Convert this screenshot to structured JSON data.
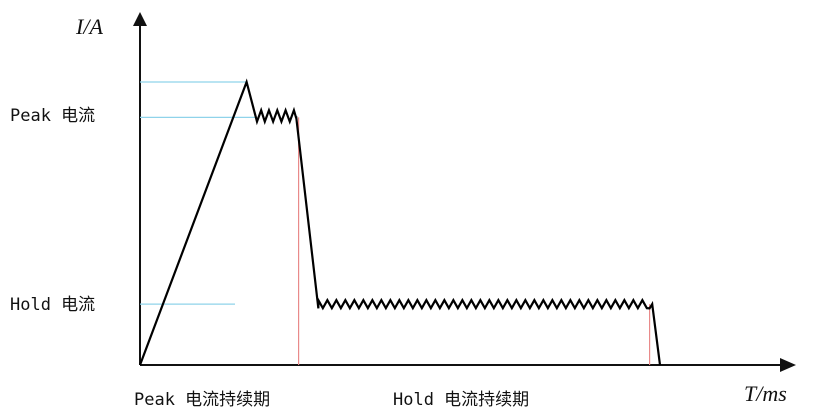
{
  "chart_data": {
    "type": "line",
    "title": "",
    "xlabel": "T/ms",
    "ylabel": "I/A",
    "grid": false,
    "legend": "none",
    "level_labels": {
      "peak": "Peak 电流",
      "hold": "Hold 电流"
    },
    "phase_labels": {
      "peak": "Peak 电流持续期",
      "hold": "Hold 电流持续期"
    },
    "levels": {
      "peak_max": 1.0,
      "peak": 0.875,
      "hold": 0.215
    },
    "phases": {
      "peak_end": 0.305,
      "hold_end": 0.98
    },
    "series": [
      {
        "x": [
          0.0,
          0.205,
          0.225,
          0.233,
          0.24,
          0.248,
          0.256,
          0.264,
          0.272,
          0.28,
          0.288,
          0.296,
          0.3,
          0.3005,
          0.343,
          0.98,
          0.985,
          1.0
        ],
        "y": [
          0.0,
          1.0,
          0.86,
          0.9,
          0.86,
          0.9,
          0.86,
          0.9,
          0.86,
          0.9,
          0.86,
          0.9,
          0.875,
          0.875,
          0.2,
          0.2,
          0.215,
          0.0
        ]
      }
    ],
    "colors": {
      "axis": "#111111",
      "signal": "#000000",
      "level_guides": "#8fd3ea",
      "phase_guides": "#e98a8a"
    }
  }
}
